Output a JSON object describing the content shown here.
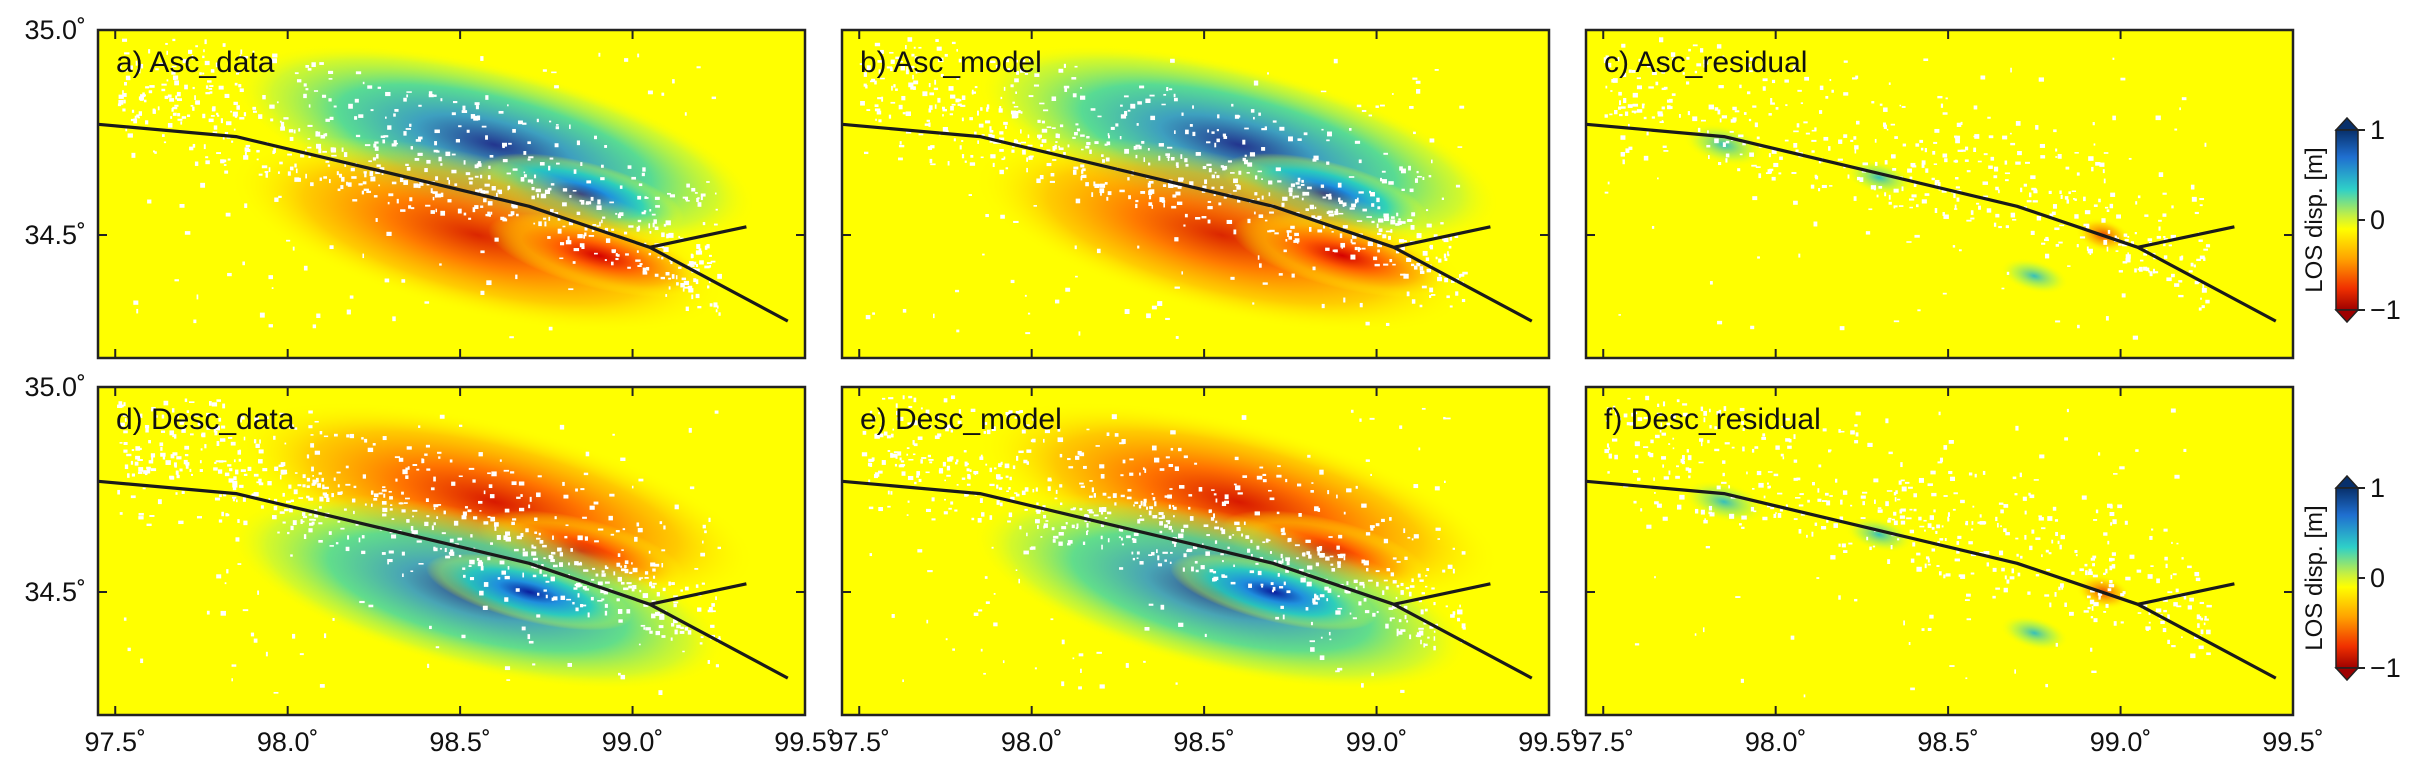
{
  "figure": {
    "x_range": [
      97.45,
      99.5
    ],
    "y_range": [
      34.2,
      35.0
    ],
    "x_ticks": [
      "97.5˚",
      "98.0˚",
      "98.5˚",
      "99.0˚",
      "99.5˚"
    ],
    "y_ticks": [
      "35.0˚",
      "34.5˚"
    ],
    "panels": [
      {
        "id": "a",
        "label": "a) Asc_data",
        "kind": "data",
        "track": "asc"
      },
      {
        "id": "b",
        "label": "b) Asc_model",
        "kind": "model",
        "track": "asc"
      },
      {
        "id": "c",
        "label": "c) Asc_residual",
        "kind": "residual",
        "track": "asc"
      },
      {
        "id": "d",
        "label": "d) Desc_data",
        "kind": "data",
        "track": "desc"
      },
      {
        "id": "e",
        "label": "e) Desc_model",
        "kind": "model",
        "track": "desc"
      },
      {
        "id": "f",
        "label": "f) Desc_residual",
        "kind": "residual",
        "track": "desc"
      }
    ],
    "fault_trace": [
      [
        97.45,
        34.77
      ],
      [
        97.85,
        34.74
      ],
      [
        98.2,
        34.67
      ],
      [
        98.7,
        34.57
      ],
      [
        99.05,
        34.47
      ],
      [
        99.45,
        34.29
      ]
    ],
    "fault_branch": [
      [
        99.05,
        34.47
      ],
      [
        99.33,
        34.52
      ]
    ],
    "colorbars": [
      {
        "title": "LOS disp. [m]",
        "ticks": [
          "1",
          "0",
          "−1"
        ]
      },
      {
        "title": "LOS disp. [m]",
        "ticks": [
          "1",
          "0",
          "−1"
        ]
      }
    ],
    "colors": {
      "background_field": "#ffff00",
      "positive": "#08306b",
      "negative": "#b30000",
      "frame": "#222222",
      "fault": "#1a1a1a"
    }
  }
}
